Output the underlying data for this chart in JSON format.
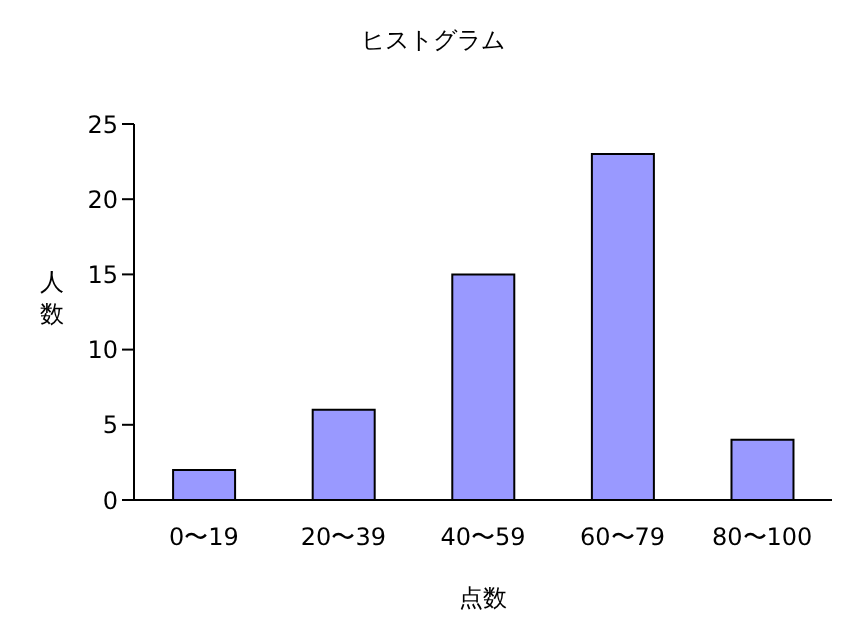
{
  "chart_data": {
    "type": "bar",
    "title": "ヒストグラム",
    "xlabel": "点数",
    "ylabel": "人数",
    "categories": [
      "0〜19",
      "20〜39",
      "40〜59",
      "60〜79",
      "80〜100"
    ],
    "values": [
      2,
      6,
      15,
      23,
      4
    ],
    "color": "#9999ff",
    "ylim": [
      0,
      25
    ],
    "yticks": [
      0,
      5,
      10,
      15,
      20,
      25
    ],
    "grid": false,
    "legend": false
  }
}
